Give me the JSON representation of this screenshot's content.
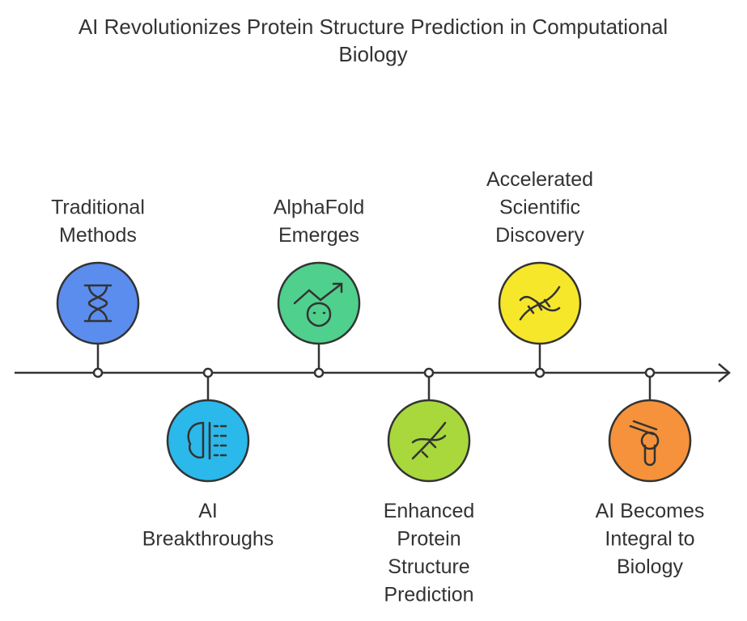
{
  "title": [
    "AI Revolutionizes Protein Structure Prediction in Computational",
    "Biology"
  ],
  "nodes": [
    {
      "label": [
        "Traditional",
        "Methods"
      ]
    },
    {
      "label": [
        "AI",
        "Breakthroughs"
      ]
    },
    {
      "label": [
        "AlphaFold",
        "Emerges"
      ]
    },
    {
      "label": [
        "Enhanced",
        "Protein",
        "Structure",
        "Prediction"
      ]
    },
    {
      "label": [
        "Accelerated",
        "Scientific",
        "Discovery"
      ]
    },
    {
      "label": [
        "AI Becomes",
        "Integral to",
        "Biology"
      ]
    }
  ]
}
